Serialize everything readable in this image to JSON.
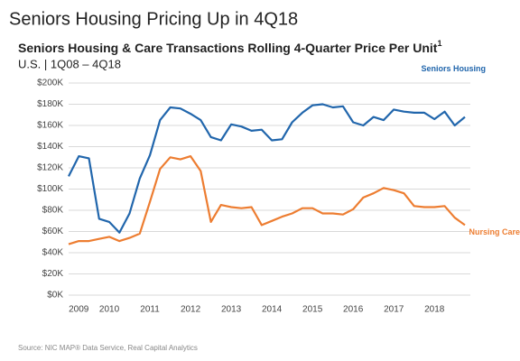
{
  "chart_data": {
    "type": "line",
    "title": "Seniors Housing Pricing Up in 4Q18",
    "subtitle": "Seniors Housing & Care Transactions Rolling 4-Quarter Price Per Unit",
    "subtitle_note": "1",
    "subtitle2": "U.S. | 1Q08 – 4Q18",
    "source": "Source: NIC MAP® Data Service, Real Capital Analytics",
    "categories": [
      null,
      "2009",
      null,
      null,
      "2010",
      null,
      null,
      null,
      "2011",
      null,
      null,
      null,
      "2012",
      null,
      null,
      null,
      "2013",
      null,
      null,
      null,
      "2014",
      null,
      null,
      null,
      "2015",
      null,
      null,
      null,
      "2016",
      null,
      null,
      null,
      "2017",
      null,
      null,
      null,
      "2018",
      null,
      null,
      null
    ],
    "series": [
      {
        "name": "Seniors Housing",
        "color": "#2166ac",
        "values": [
          112,
          131,
          129,
          72,
          69,
          59,
          77,
          110,
          132,
          165,
          177,
          176,
          171,
          165,
          149,
          146,
          161,
          159,
          155,
          156,
          146,
          147,
          163,
          172,
          179,
          180,
          177,
          178,
          163,
          160,
          168,
          165,
          175,
          173,
          172,
          172,
          166,
          173,
          160,
          168
        ]
      },
      {
        "name": "Nursing Care",
        "color": "#ed7d31",
        "values": [
          48,
          51,
          51,
          53,
          55,
          51,
          54,
          58,
          88,
          119,
          130,
          128,
          131,
          117,
          69,
          85,
          83,
          82,
          83,
          66,
          70,
          74,
          77,
          82,
          82,
          77,
          77,
          76,
          81,
          92,
          96,
          101,
          99,
          96,
          84,
          83,
          83,
          84,
          73,
          66
        ]
      }
    ],
    "ylim": [
      0,
      200
    ],
    "yticks": [
      {
        "value": 0,
        "label": "$0K"
      },
      {
        "value": 20,
        "label": "$20K"
      },
      {
        "value": 40,
        "label": "$40K"
      },
      {
        "value": 60,
        "label": "$60K"
      },
      {
        "value": 80,
        "label": "$80K"
      },
      {
        "value": 100,
        "label": "$100K"
      },
      {
        "value": 120,
        "label": "$120K"
      },
      {
        "value": 140,
        "label": "$140K"
      },
      {
        "value": 160,
        "label": "$160K"
      },
      {
        "value": 180,
        "label": "$180K"
      },
      {
        "value": 200,
        "label": "$200K"
      }
    ],
    "grid": true
  }
}
